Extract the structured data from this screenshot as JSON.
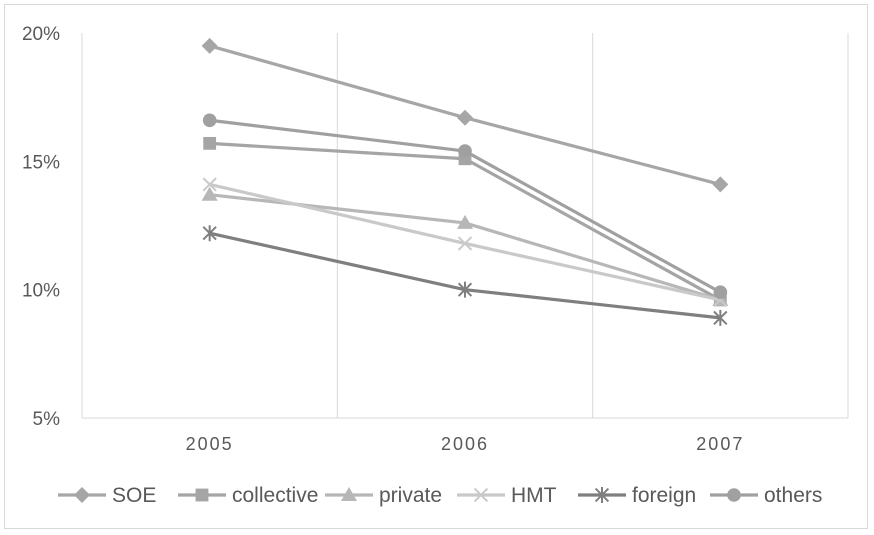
{
  "chart_data": {
    "type": "line",
    "title": "",
    "xlabel": "",
    "ylabel": "",
    "categories": [
      "2005",
      "2006",
      "2007"
    ],
    "y_ticks": [
      "5%",
      "10%",
      "15%",
      "20%"
    ],
    "y_tick_values": [
      5,
      10,
      15,
      20
    ],
    "ylim": [
      5,
      20
    ],
    "grid": "vertical",
    "legend": "bottom",
    "series": [
      {
        "name": "SOE",
        "values": [
          19.5,
          16.7,
          14.1
        ],
        "marker": "diamond",
        "color": "#a6a6a6"
      },
      {
        "name": "collective",
        "values": [
          15.7,
          15.1,
          9.6
        ],
        "marker": "square",
        "color": "#a5a5a5"
      },
      {
        "name": "private",
        "values": [
          13.7,
          12.6,
          9.6
        ],
        "marker": "triangle",
        "color": "#b7b7b7"
      },
      {
        "name": "HMT",
        "values": [
          14.1,
          11.8,
          9.6
        ],
        "marker": "x",
        "color": "#c9c9c9"
      },
      {
        "name": "foreign",
        "values": [
          12.2,
          10.0,
          8.9
        ],
        "marker": "star",
        "color": "#7f7f7f"
      },
      {
        "name": "others",
        "values": [
          16.6,
          15.4,
          9.9
        ],
        "marker": "circle",
        "color": "#a0a0a0"
      }
    ]
  }
}
